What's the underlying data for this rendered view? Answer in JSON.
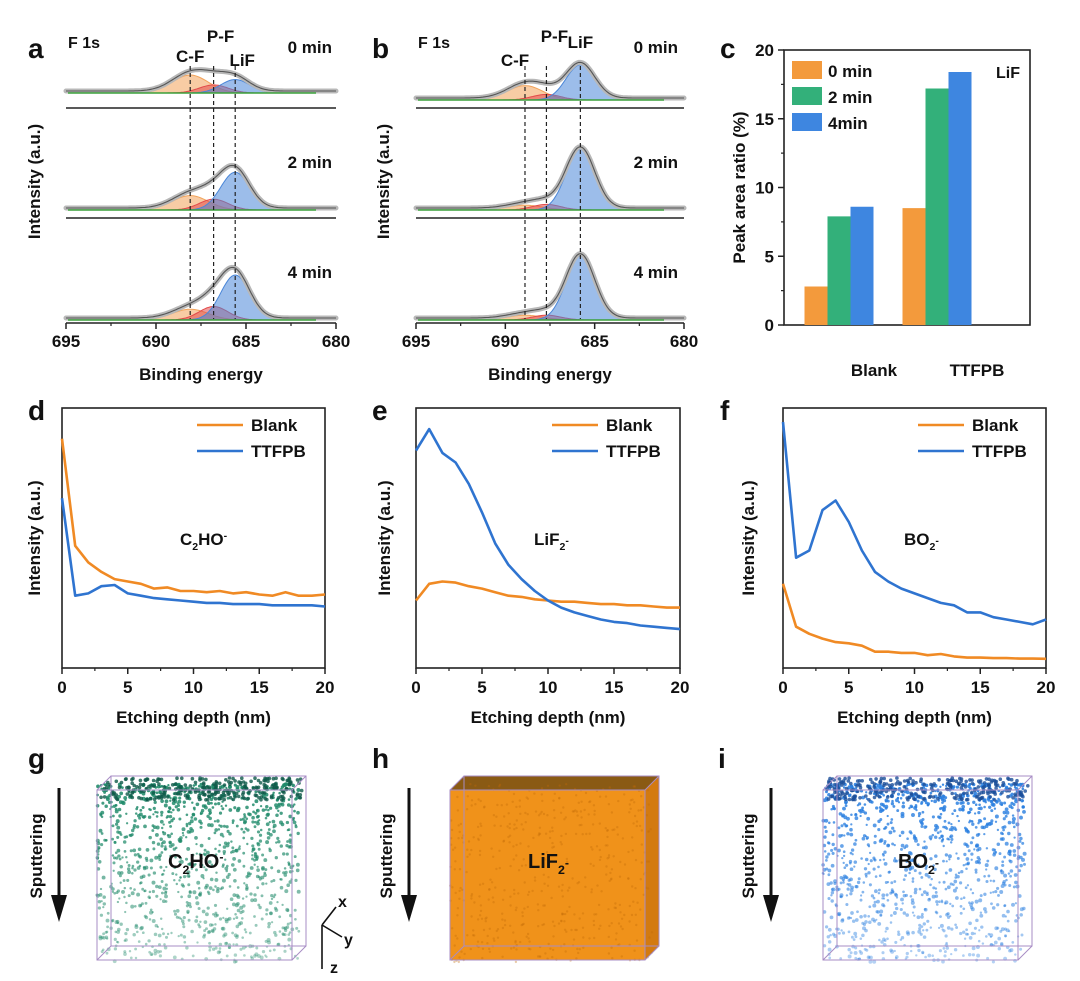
{
  "colors": {
    "orange": "#f08a24",
    "blue": "#2f74d0",
    "green": "#2e9e5e",
    "red": "#d9262a",
    "gray": "#9a9a9a",
    "cf": "#f2a35a",
    "pf": "#e24a4a",
    "lif": "#4a86d8",
    "fit": "#3aa03a",
    "c_0min": "#f39a3c",
    "c_2min": "#33b07a",
    "c_4min": "#3e86e0"
  },
  "panel_labels": {
    "a": "a",
    "b": "b",
    "c": "c",
    "d": "d",
    "e": "e",
    "f": "f",
    "g": "g",
    "h": "h",
    "i": "i"
  },
  "chart_data": [
    {
      "id": "a",
      "type": "line",
      "title": "F 1s",
      "peak_labels": [
        "C-F",
        "P-F",
        "LiF"
      ],
      "times": [
        "0 min",
        "2 min",
        "4 min"
      ],
      "xlabel": "Binding energy",
      "ylabel": "Intensity (a.u.)",
      "xlim": [
        695,
        680
      ],
      "xticks": [
        695,
        690,
        685,
        680
      ],
      "peak_positions": [
        688.1,
        686.8,
        685.6
      ],
      "components": [
        {
          "time": "0 min",
          "cf": 1.0,
          "pf": 0.45,
          "lif": 0.75
        },
        {
          "time": "2 min",
          "cf": 0.8,
          "pf": 0.6,
          "lif": 2.1
        },
        {
          "time": "4 min",
          "cf": 0.6,
          "pf": 0.75,
          "lif": 2.5
        }
      ]
    },
    {
      "id": "b",
      "type": "line",
      "title": "F 1s",
      "peak_labels": [
        "C-F",
        "P-F",
        "LiF"
      ],
      "times": [
        "0 min",
        "2 min",
        "4 min"
      ],
      "xlabel": "Binding energy",
      "ylabel": "Intensity (a.u.)",
      "xlim": [
        695,
        680
      ],
      "xticks": [
        695,
        690,
        685,
        680
      ],
      "peak_positions": [
        688.9,
        687.7,
        685.8
      ],
      "components": [
        {
          "time": "0 min",
          "cf": 0.9,
          "pf": 0.35,
          "lif": 2.2
        },
        {
          "time": "2 min",
          "cf": 0.3,
          "pf": 0.35,
          "lif": 3.8
        },
        {
          "time": "4 min",
          "cf": 0.3,
          "pf": 0.3,
          "lif": 4.0
        }
      ]
    },
    {
      "id": "c",
      "type": "bar",
      "annotation": "LiF",
      "categories": [
        "Blank",
        "TTFPB"
      ],
      "series": [
        {
          "name": "0 min",
          "values": [
            2.8,
            8.5
          ]
        },
        {
          "name": "2 min",
          "values": [
            7.9,
            17.2
          ]
        },
        {
          "name": "4min",
          "values": [
            8.6,
            18.4
          ]
        }
      ],
      "ylabel": "Peak area ratio (%)",
      "ylim": [
        0,
        20
      ],
      "yticks": [
        0,
        5,
        10,
        15,
        20
      ]
    },
    {
      "id": "d",
      "type": "line",
      "annotation": "C",
      "annotation_sub": "2",
      "annotation_tail": "HO",
      "annotation_sup": "-",
      "xlabel": "Etching depth (nm)",
      "ylabel": "Intensity (a.u.)",
      "xlim": [
        0,
        20
      ],
      "ylim": [
        0,
        1
      ],
      "xticks": [
        0,
        5,
        10,
        15,
        20
      ],
      "series": [
        {
          "name": "Blank",
          "x": [
            0,
            1,
            2,
            3,
            4,
            5,
            6,
            7,
            8,
            9,
            10,
            11,
            12,
            13,
            14,
            15,
            16,
            17,
            18,
            19,
            20
          ],
          "y": [
            0.93,
            0.48,
            0.41,
            0.37,
            0.34,
            0.33,
            0.32,
            0.3,
            0.305,
            0.29,
            0.29,
            0.285,
            0.29,
            0.28,
            0.285,
            0.275,
            0.27,
            0.285,
            0.27,
            0.27,
            0.275
          ]
        },
        {
          "name": "TTFPB",
          "x": [
            0,
            1,
            2,
            3,
            4,
            5,
            6,
            7,
            8,
            9,
            10,
            11,
            12,
            13,
            14,
            15,
            16,
            17,
            18,
            19,
            20
          ],
          "y": [
            0.68,
            0.27,
            0.28,
            0.31,
            0.315,
            0.28,
            0.27,
            0.26,
            0.255,
            0.25,
            0.245,
            0.24,
            0.24,
            0.235,
            0.235,
            0.235,
            0.23,
            0.23,
            0.23,
            0.23,
            0.225
          ]
        }
      ]
    },
    {
      "id": "e",
      "type": "line",
      "annotation": "LiF",
      "annotation_sub": "2",
      "annotation_tail": "",
      "annotation_sup": "-",
      "xlabel": "Etching depth (nm)",
      "ylabel": "Intensity (a.u.)",
      "xlim": [
        0,
        20
      ],
      "ylim": [
        0,
        1
      ],
      "xticks": [
        0,
        5,
        10,
        15,
        20
      ],
      "series": [
        {
          "name": "Blank",
          "x": [
            0,
            1,
            2,
            3,
            4,
            5,
            6,
            7,
            8,
            9,
            10,
            11,
            12,
            13,
            14,
            15,
            16,
            17,
            18,
            19,
            20
          ],
          "y": [
            0.25,
            0.32,
            0.33,
            0.325,
            0.31,
            0.3,
            0.285,
            0.27,
            0.265,
            0.255,
            0.25,
            0.245,
            0.245,
            0.24,
            0.235,
            0.235,
            0.23,
            0.23,
            0.225,
            0.22,
            0.22
          ]
        },
        {
          "name": "TTFPB",
          "x": [
            0,
            1,
            2,
            3,
            4,
            5,
            6,
            7,
            8,
            9,
            10,
            11,
            12,
            13,
            14,
            15,
            16,
            17,
            18,
            19,
            20
          ],
          "y": [
            0.88,
            0.97,
            0.87,
            0.83,
            0.74,
            0.62,
            0.49,
            0.4,
            0.34,
            0.29,
            0.25,
            0.22,
            0.2,
            0.185,
            0.17,
            0.16,
            0.155,
            0.145,
            0.14,
            0.135,
            0.13
          ]
        }
      ]
    },
    {
      "id": "f",
      "type": "line",
      "annotation": "BO",
      "annotation_sub": "2",
      "annotation_tail": "",
      "annotation_sup": "-",
      "xlabel": "Etching depth (nm)",
      "ylabel": "Intensity (a.u.)",
      "xlim": [
        0,
        20
      ],
      "ylim": [
        0,
        1
      ],
      "xticks": [
        0,
        5,
        10,
        15,
        20
      ],
      "series": [
        {
          "name": "Blank",
          "x": [
            0,
            1,
            2,
            3,
            4,
            5,
            6,
            7,
            8,
            9,
            10,
            11,
            12,
            13,
            14,
            15,
            16,
            17,
            18,
            19,
            20
          ],
          "y": [
            0.32,
            0.14,
            0.11,
            0.09,
            0.075,
            0.07,
            0.06,
            0.035,
            0.035,
            0.03,
            0.03,
            0.02,
            0.025,
            0.015,
            0.01,
            0.01,
            0.008,
            0.008,
            0.006,
            0.006,
            0.005
          ]
        },
        {
          "name": "TTFPB",
          "x": [
            0,
            1,
            2,
            3,
            4,
            5,
            6,
            7,
            8,
            9,
            10,
            11,
            12,
            13,
            14,
            15,
            16,
            17,
            18,
            19,
            20
          ],
          "y": [
            1.0,
            0.43,
            0.46,
            0.63,
            0.67,
            0.58,
            0.46,
            0.37,
            0.33,
            0.3,
            0.28,
            0.26,
            0.24,
            0.23,
            0.2,
            0.2,
            0.18,
            0.17,
            0.16,
            0.15,
            0.17
          ]
        }
      ]
    }
  ],
  "tomography": [
    {
      "id": "g",
      "arrow_label": "Sputtering",
      "species": "C",
      "species_sub": "2",
      "species_tail": "HO",
      "species_sup": "-",
      "color": "#1f8a6a",
      "axes": {
        "x": "x",
        "y": "y",
        "z": "z"
      }
    },
    {
      "id": "h",
      "arrow_label": "Sputtering",
      "species": "LiF",
      "species_sub": "2",
      "species_tail": "",
      "species_sup": "-",
      "color": "#f0921a"
    },
    {
      "id": "i",
      "arrow_label": "Sputtering",
      "species": "BO",
      "species_sub": "2",
      "species_tail": "",
      "species_sup": "-",
      "color": "#2a7fe0"
    }
  ]
}
